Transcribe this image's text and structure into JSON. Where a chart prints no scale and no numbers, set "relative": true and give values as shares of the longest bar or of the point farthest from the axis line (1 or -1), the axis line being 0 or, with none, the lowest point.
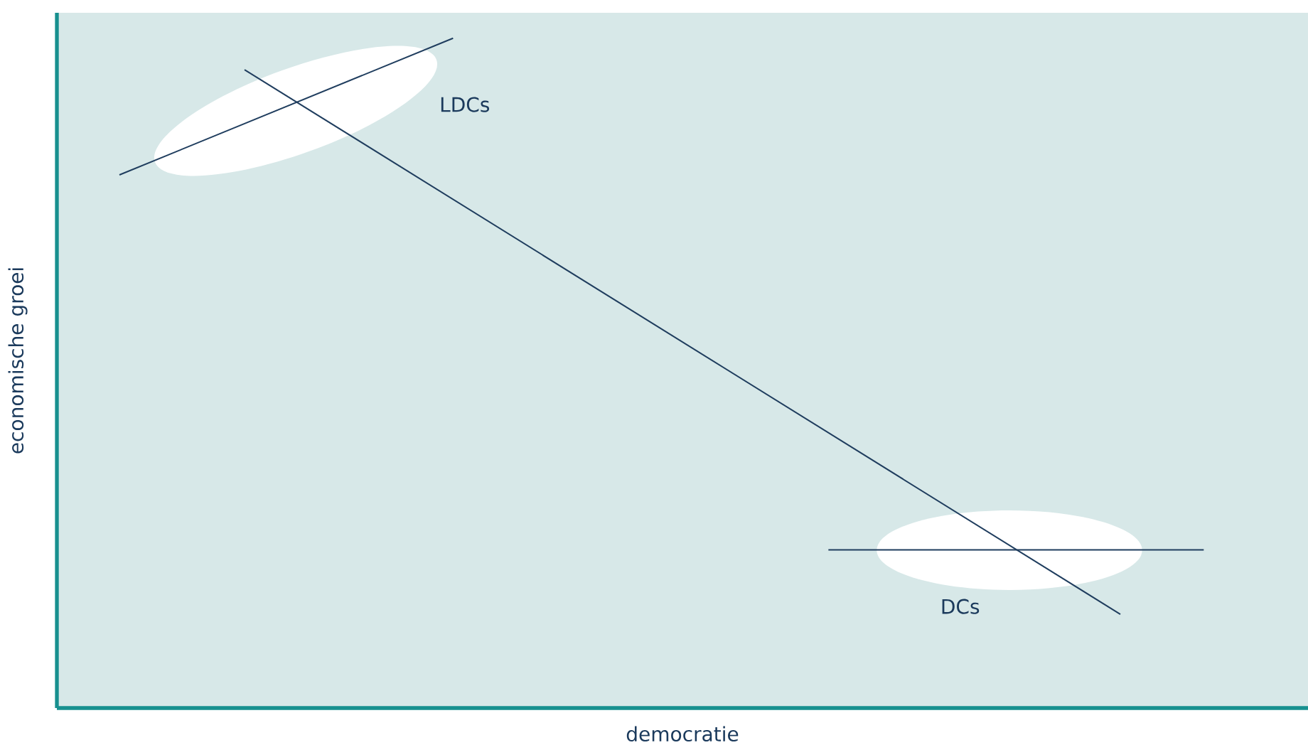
{
  "chart_data": {
    "type": "line",
    "relative": true,
    "xlabel": "democratie",
    "ylabel": "economische groei",
    "categories": [
      null,
      null,
      null,
      null,
      null,
      null,
      null,
      null,
      null,
      null,
      null,
      null,
      null,
      null,
      null,
      null,
      null,
      null,
      null,
      null,
      null,
      null,
      null,
      null,
      null,
      null,
      null,
      null,
      null,
      null
    ],
    "marker": "none",
    "line_style": "solid",
    "series": [
      {
        "color": "#1f3d5e",
        "values": [
          null,
          null,
          null,
          null,
          0.953,
          null,
          null,
          null,
          null,
          null,
          null,
          null,
          null,
          null,
          null,
          null,
          null,
          null,
          null,
          null,
          null,
          null,
          null,
          null,
          null,
          0.14,
          null,
          null,
          null,
          null
        ]
      },
      {
        "color": "#1f3d5e",
        "values": [
          null,
          0.796,
          null,
          null,
          null,
          null,
          null,
          null,
          null,
          1,
          null,
          null,
          null,
          null,
          null,
          null,
          null,
          null,
          null,
          null,
          null,
          null,
          null,
          null,
          null,
          null,
          null,
          null,
          null,
          null
        ]
      },
      {
        "color": "#1f3d5e",
        "values": [
          null,
          null,
          null,
          null,
          null,
          null,
          null,
          null,
          null,
          null,
          null,
          null,
          null,
          null,
          null,
          null,
          null,
          null,
          0.236,
          null,
          null,
          null,
          null,
          null,
          null,
          null,
          null,
          0.236,
          null,
          null
        ]
      }
    ],
    "annotations": [
      "LDCs",
      "DCs"
    ]
  }
}
